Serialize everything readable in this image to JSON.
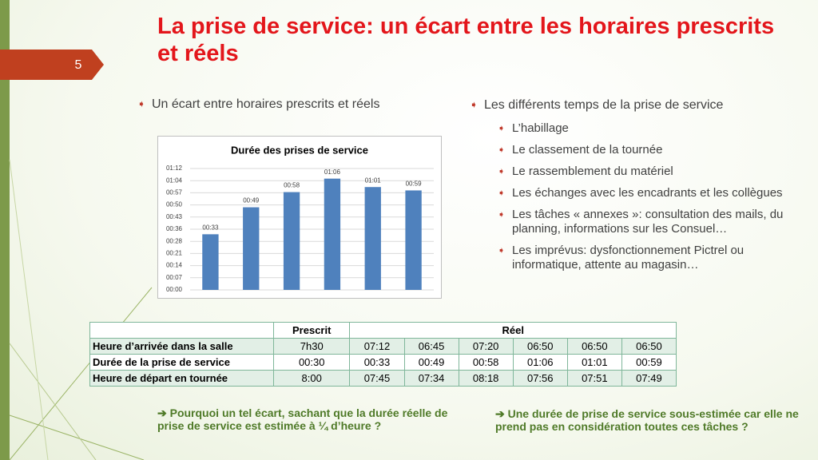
{
  "slide_number": "5",
  "title": "La prise de service: un écart entre les horaires prescrits et réels",
  "left_bullet": "Un écart entre horaires prescrits et réels",
  "chart_data": {
    "type": "bar",
    "title": "Durée des prises de service",
    "color": "#4f81bd",
    "grid": true,
    "values": [
      33,
      49,
      58,
      66,
      61,
      59
    ],
    "value_labels": [
      "00:33",
      "00:49",
      "00:58",
      "01:06",
      "01:01",
      "00:59"
    ],
    "ylim": [
      0,
      72
    ],
    "yticks": [
      {
        "value": 0,
        "label": "00:00"
      },
      {
        "value": 7.2,
        "label": "00:07"
      },
      {
        "value": 14.4,
        "label": "00:14"
      },
      {
        "value": 21.6,
        "label": "00:21"
      },
      {
        "value": 28.8,
        "label": "00:28"
      },
      {
        "value": 36,
        "label": "00:36"
      },
      {
        "value": 43.2,
        "label": "00:43"
      },
      {
        "value": 50.4,
        "label": "00:50"
      },
      {
        "value": 57.6,
        "label": "00:57"
      },
      {
        "value": 64.8,
        "label": "01:04"
      },
      {
        "value": 72,
        "label": "01:12"
      }
    ]
  },
  "right_bullets": {
    "main": "Les différents temps de la prise de service",
    "items": [
      "L’habillage",
      "Le classement de la tournée",
      "Le rassemblement du matériel",
      "Les échanges avec les encadrants et les collègues",
      "Les tâches « annexes »: consultation des mails, du planning, informations sur les Consuel…",
      "Les imprévus: dysfonctionnement Pictrel ou informatique, attente au magasin…"
    ]
  },
  "table": {
    "header": [
      "Prescrit",
      "Réel"
    ],
    "rows": [
      [
        "Heure d’arrivée dans la salle",
        "7h30",
        "07:12",
        "06:45",
        "07:20",
        "06:50",
        "06:50",
        "06:50"
      ],
      [
        "Durée de la prise de service",
        "00:30",
        "00:33",
        "00:49",
        "00:58",
        "01:06",
        "01:01",
        "00:59"
      ],
      [
        "Heure de départ en tournée",
        "8:00",
        "07:45",
        "07:34",
        "08:18",
        "07:56",
        "07:51",
        "07:49"
      ]
    ]
  },
  "notes": [
    "➔ Pourquoi un tel écart, sachant que la durée réelle de prise de service est estimée à ¼ d’heure ?",
    "➔ Une durée de prise de service sous-estimée car elle ne prend pas en considération toutes ces tâches ?"
  ]
}
